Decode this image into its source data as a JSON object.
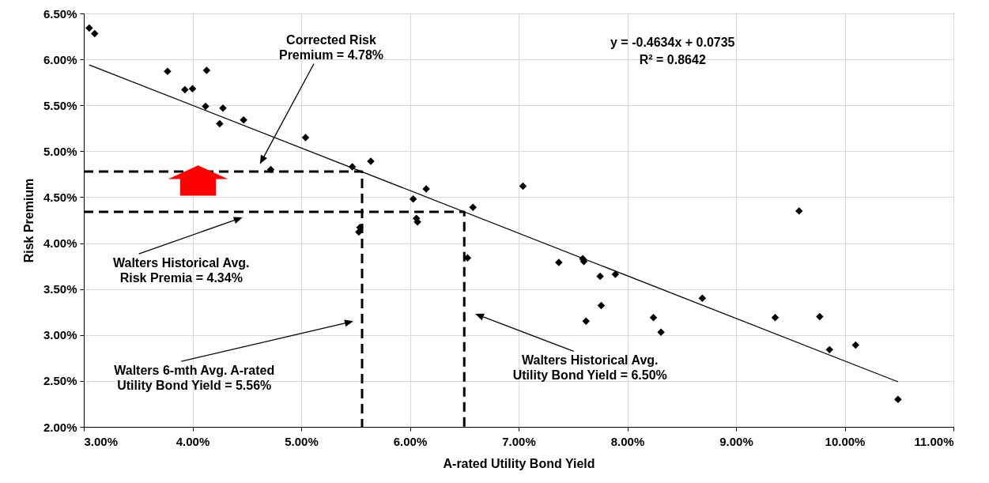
{
  "chart_data": {
    "type": "scatter",
    "xlabel": "A-rated Utility Bond Yield",
    "ylabel": "Risk Premium",
    "xlim": [
      3,
      11
    ],
    "ylim": [
      2,
      6.5
    ],
    "xticks": [
      {
        "value": 3,
        "label": "3.00%"
      },
      {
        "value": 4,
        "label": "4.00%"
      },
      {
        "value": 5,
        "label": "5.00%"
      },
      {
        "value": 6,
        "label": "6.00%"
      },
      {
        "value": 7,
        "label": "7.00%"
      },
      {
        "value": 8,
        "label": "8.00%"
      },
      {
        "value": 9,
        "label": "9.00%"
      },
      {
        "value": 10,
        "label": "10.00%"
      },
      {
        "value": 11,
        "label": "11.00%"
      }
    ],
    "yticks": [
      {
        "value": 2,
        "label": "2.00%"
      },
      {
        "value": 2.5,
        "label": "2.50%"
      },
      {
        "value": 3,
        "label": "3.00%"
      },
      {
        "value": 3.5,
        "label": "3.50%"
      },
      {
        "value": 4,
        "label": "4.00%"
      },
      {
        "value": 4.5,
        "label": "4.50%"
      },
      {
        "value": 5,
        "label": "5.00%"
      },
      {
        "value": 5.5,
        "label": "5.50%"
      },
      {
        "value": 6,
        "label": "6.00%"
      },
      {
        "value": 6.5,
        "label": "6.50%"
      }
    ],
    "grid": true,
    "series": [
      {
        "marker": "diamond",
        "color": "#000000",
        "x": [
          3.05,
          3.1,
          3.77,
          3.93,
          4.0,
          4.12,
          4.13,
          4.25,
          4.28,
          4.47,
          4.72,
          5.04,
          5.47,
          5.53,
          5.54,
          5.64,
          6.03,
          6.06,
          6.07,
          6.15,
          6.53,
          6.58,
          7.04,
          7.37,
          7.59,
          7.6,
          7.62,
          7.75,
          7.76,
          7.89,
          8.24,
          8.31,
          8.69,
          9.36,
          9.58,
          9.77,
          9.86,
          10.1,
          10.49
        ],
        "values": [
          6.34,
          6.28,
          5.87,
          5.67,
          5.68,
          5.49,
          5.88,
          5.3,
          5.47,
          5.34,
          4.8,
          5.15,
          4.83,
          4.12,
          4.17,
          4.89,
          4.48,
          4.27,
          4.23,
          4.59,
          3.84,
          4.39,
          4.62,
          3.79,
          3.83,
          3.8,
          3.15,
          3.64,
          3.32,
          3.66,
          3.19,
          3.03,
          3.4,
          3.19,
          4.35,
          3.2,
          2.84,
          2.89,
          2.3
        ]
      },
      {
        "type": "line",
        "line_style": "solid",
        "color": "#000000",
        "x": [
          3.05,
          10.49
        ],
        "values": [
          5.94,
          2.49
        ]
      },
      {
        "type": "line",
        "line_style": "dashed",
        "color": "#000000",
        "x": [
          3,
          5.56,
          5.56
        ],
        "values": [
          4.78,
          4.78,
          2
        ]
      },
      {
        "type": "line",
        "line_style": "dashed",
        "color": "#000000",
        "x": [
          3,
          6.5,
          6.5
        ],
        "values": [
          4.34,
          4.34,
          2
        ]
      }
    ],
    "annotations": [
      "Corrected Risk Premium = 4.78%",
      "y = -0.4634x + 0.0735",
      "R² = 0.8642",
      "Walters Historical Avg. Risk Premia = 4.34%",
      "Walters 6-mth Avg. A-rated Utility Bond Yield = 5.56%",
      "Walters Historical Avg. Utility Bond Yield = 6.50%"
    ]
  }
}
